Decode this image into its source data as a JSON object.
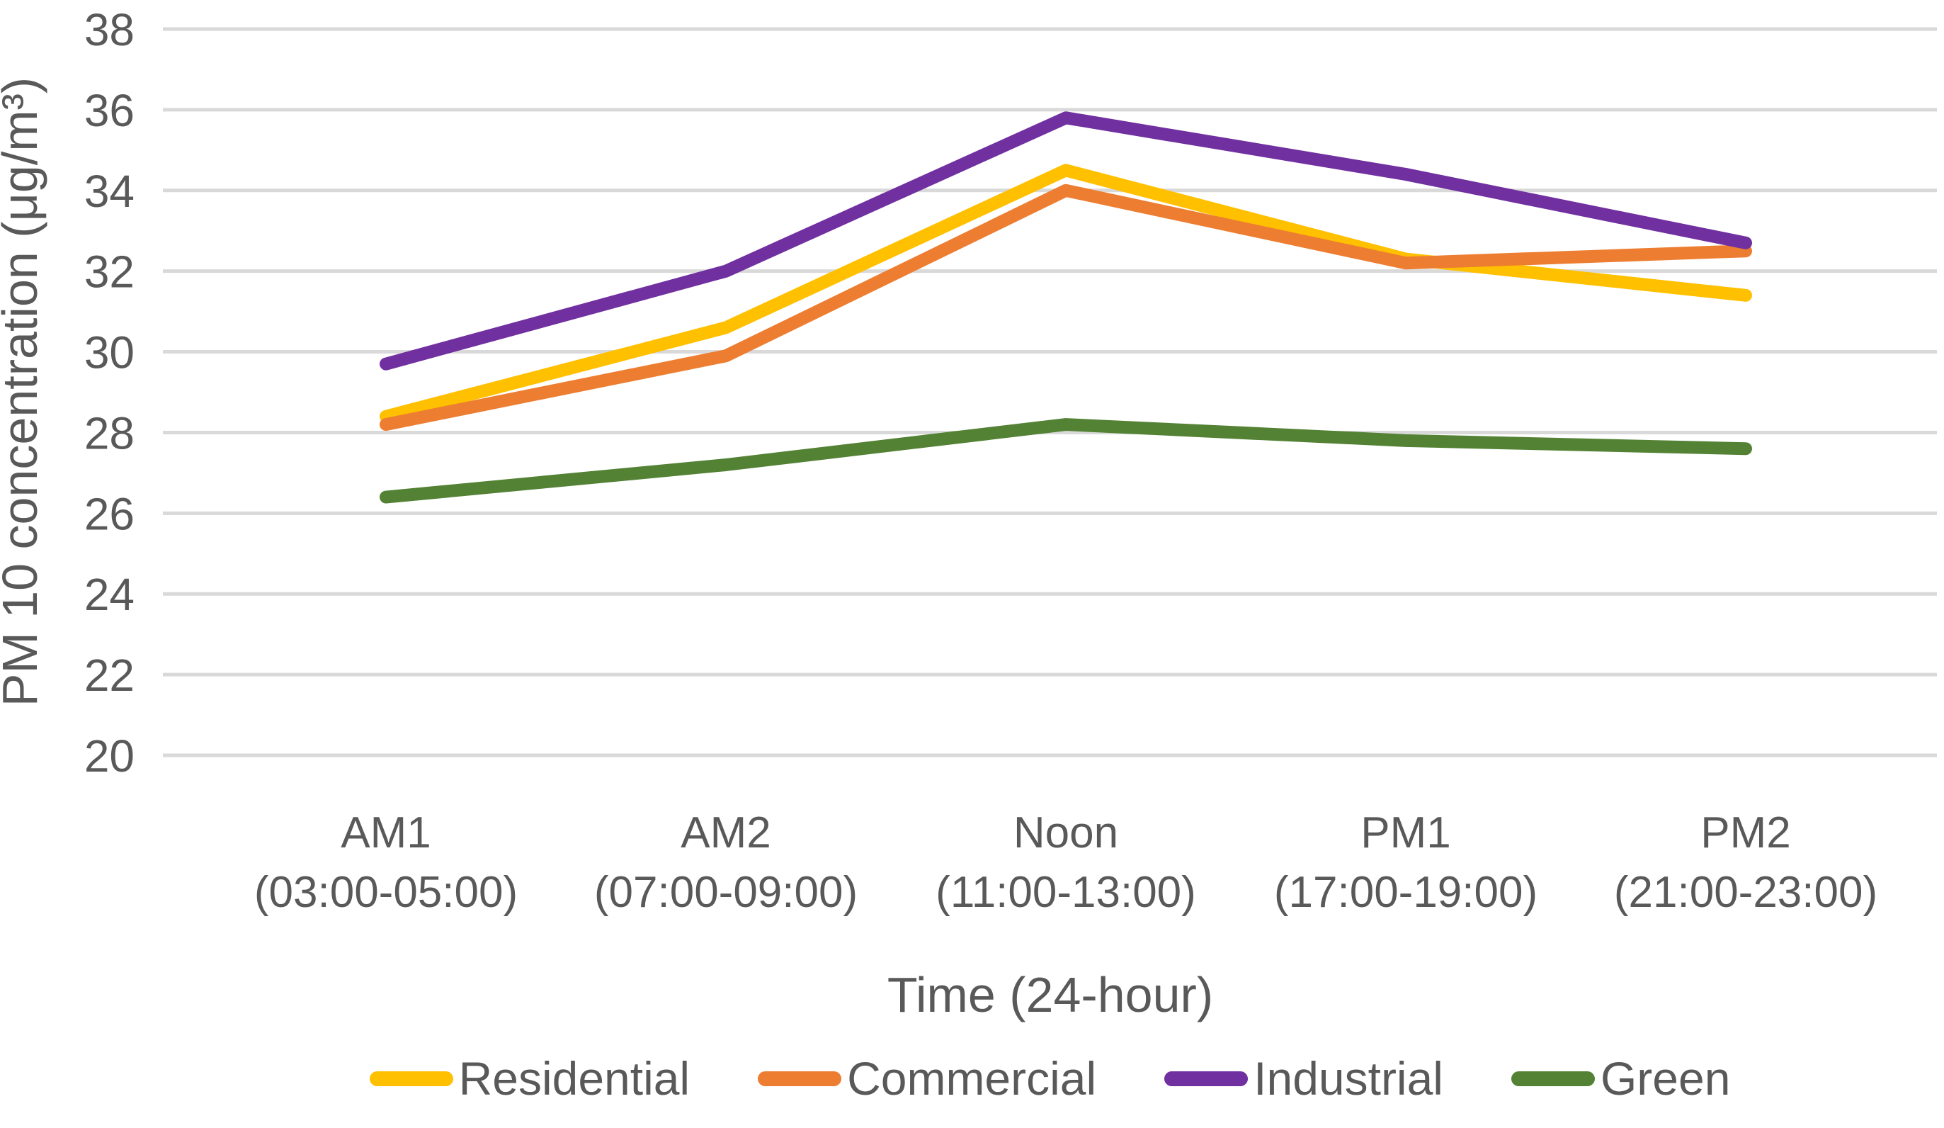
{
  "chart_data": {
    "type": "line",
    "title": "",
    "xlabel": "Time (24-hour)",
    "ylabel": "PM 10 concentration (μg/m³)",
    "ylim": [
      20,
      38
    ],
    "ytick_step": 2,
    "grid": true,
    "legend_position": "bottom",
    "categories": [
      {
        "name": "AM1",
        "time": "(03:00-05:00)"
      },
      {
        "name": "AM2",
        "time": "(07:00-09:00)"
      },
      {
        "name": "Noon",
        "time": "(11:00-13:00)"
      },
      {
        "name": "PM1",
        "time": "(17:00-19:00)"
      },
      {
        "name": "PM2",
        "time": "(21:00-23:00)"
      }
    ],
    "series": [
      {
        "name": "Residential",
        "color": "#FFC000",
        "values": [
          28.4,
          30.6,
          34.5,
          32.3,
          31.4
        ]
      },
      {
        "name": "Commercial",
        "color": "#ED7D31",
        "values": [
          28.2,
          29.9,
          34.0,
          32.2,
          32.5
        ]
      },
      {
        "name": "Industrial",
        "color": "#7030A0",
        "values": [
          29.7,
          32.0,
          35.8,
          34.4,
          32.7
        ]
      },
      {
        "name": "Green",
        "color": "#548235",
        "values": [
          26.4,
          27.2,
          28.2,
          27.8,
          27.6
        ]
      }
    ],
    "colors": {
      "grid": "#D9D9D9",
      "text": "#595959",
      "background": "#FFFFFF"
    }
  }
}
